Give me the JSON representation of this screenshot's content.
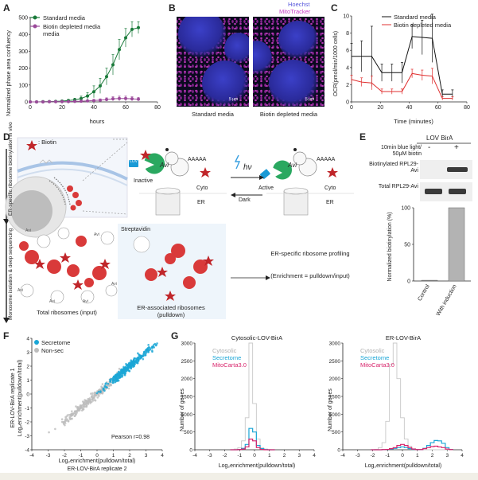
{
  "panels": {
    "A": "A",
    "B": "B",
    "C": "C",
    "D": "D",
    "E": "E",
    "F": "F",
    "G": "G"
  },
  "panelA": {
    "ylabel": "Normalized phase area confluency",
    "xlabel": "hours",
    "legend": [
      "Standard media",
      "Biotin depleted media"
    ],
    "yticks": [
      "0",
      "100",
      "200",
      "300",
      "400",
      "500"
    ],
    "xticks": [
      "0",
      "20",
      "40",
      "60",
      "80"
    ]
  },
  "panelB": {
    "legend_hoechst": "Hoechst",
    "legend_mito": "MitoTracker",
    "label_left": "Standard media",
    "label_right": "Biotin depleted media",
    "scale_left": "5 μm",
    "scale_right": "5 μm"
  },
  "panelC": {
    "ylabel": "OCR(pmol/min/1000 cells)",
    "xlabel": "Time (minutes)",
    "legend": [
      "Standard media",
      "Biotin depleted media"
    ],
    "yticks": [
      "0",
      "2",
      "4",
      "6",
      "8",
      "10"
    ],
    "xticks": [
      "0",
      "20",
      "40",
      "60",
      "80"
    ]
  },
  "panelD": {
    "biotin_legend": ": Biotin",
    "side_label_top": "ER-specific ribosome biotinylation in vivo",
    "side_label_bottom": "Monosome isolation & deep sequencing",
    "lov": "LOV",
    "avi": "Avi",
    "aaaaa_left": "AAAAA",
    "aaaaa_right": "AAAAA",
    "inactive": "Inactive",
    "active": "Active",
    "cyto_left": "Cyto",
    "cyto_right": "Cyto",
    "er_left": "ER",
    "er_right": "ER",
    "hv": "hν",
    "dark": "Dark",
    "streptavidin": "Streptavidin",
    "total_ribosomes": "Total ribosomes (input)",
    "er_ribosomes": "ER-associated ribosomes (pulldown)",
    "profiling": "ER-specific ribosome profiling",
    "enrichment": "(Enrichment = pulldown/input)",
    "avi_tags": [
      "Avi",
      "Avi",
      "Avi",
      "Avi",
      "Avi",
      "Avi"
    ]
  },
  "panelE": {
    "title": "LOV BirA",
    "row_condition": "10min blue light/ 50μM biotin",
    "minus": "-",
    "plus": "+",
    "row1": "Biotinylated RPL29-Avi",
    "row2": "Total RPL29-Avi",
    "ylabel": "Normalized biotinylation (%)",
    "yticks": [
      "0",
      "50",
      "100"
    ],
    "xlabels": [
      "Control",
      "With induction"
    ]
  },
  "panelF": {
    "legend": [
      "Secretome",
      "Non-sec"
    ],
    "ylabel1": "ER-LOV-BirA replicate 1",
    "ylabel2": "Log₂enrichment(pulldown/total)",
    "xlabel1": "Log₂enrichment(pulldown/total)",
    "xlabel2": "ER-LOV-BirA replicate 2",
    "pearson": "Pearson r=0.98",
    "xticks": [
      "-4",
      "-3",
      "-2",
      "-1",
      "0",
      "1",
      "2",
      "3",
      "4"
    ],
    "yticks": [
      "-4",
      "-3",
      "-2",
      "-1",
      "0",
      "1",
      "2",
      "3",
      "4"
    ]
  },
  "panelG": {
    "left_title": "Cytosolic-LOV-BirA",
    "right_title": "ER-LOV-BirA",
    "ylabel": "Number of genes",
    "xlabel": "Log₂enrichment(pulldown/total)",
    "legend": [
      "Cytosolic",
      "Secretome",
      "MitoCarta3.0"
    ],
    "yticks": [
      "0",
      "500",
      "1000",
      "1500",
      "2000",
      "2500",
      "3000"
    ],
    "xticks": [
      "-4",
      "-3",
      "-2",
      "-1",
      "0",
      "1",
      "2",
      "3",
      "4"
    ]
  },
  "colors": {
    "standard": "#1a7a3a",
    "biotin_depleted": "#9b4a9a",
    "ocr_standard": "#111111",
    "ocr_depleted": "#e03030",
    "secretome": "#1aa6d6",
    "nonsec": "#bdbdbd",
    "cytosolic": "#c8c8c8",
    "mitocarta": "#d8246b",
    "ribosome": "#d93a3a",
    "lov": "#1a9ad6",
    "bira": "#2aa860",
    "membrane": "#a8c4e6",
    "bar": "#b3b3b3"
  },
  "chart_data": [
    {
      "id": "A",
      "type": "line",
      "title": "",
      "xlabel": "hours",
      "ylabel": "Normalized phase area confluency",
      "xlim": [
        0,
        80
      ],
      "ylim": [
        0,
        500
      ],
      "series": [
        {
          "name": "Standard media",
          "x": [
            0,
            4,
            8,
            12,
            16,
            20,
            24,
            28,
            32,
            36,
            40,
            44,
            48,
            52,
            56,
            60,
            64,
            68
          ],
          "y": [
            0,
            0,
            1,
            2,
            3,
            5,
            8,
            12,
            20,
            35,
            60,
            95,
            150,
            220,
            310,
            380,
            430,
            440
          ],
          "err": [
            0,
            0,
            1,
            2,
            3,
            4,
            6,
            10,
            14,
            20,
            35,
            45,
            50,
            60,
            60,
            55,
            45,
            35
          ]
        },
        {
          "name": "Biotin depleted media",
          "x": [
            0,
            4,
            8,
            12,
            16,
            20,
            24,
            28,
            32,
            36,
            40,
            44,
            48,
            52,
            56,
            60,
            64,
            68
          ],
          "y": [
            0,
            0,
            0,
            1,
            1,
            2,
            2,
            3,
            4,
            6,
            8,
            10,
            14,
            18,
            20,
            20,
            18,
            16
          ],
          "err": [
            0,
            0,
            0,
            1,
            1,
            1,
            2,
            2,
            3,
            4,
            6,
            8,
            10,
            12,
            14,
            14,
            12,
            10
          ]
        }
      ]
    },
    {
      "id": "C",
      "type": "line",
      "title": "",
      "xlabel": "Time (minutes)",
      "ylabel": "OCR(pmol/min/1000 cells)",
      "xlim": [
        0,
        80
      ],
      "ylim": [
        0,
        10
      ],
      "series": [
        {
          "name": "Standard media",
          "x": [
            0,
            7,
            14,
            21,
            28,
            35,
            42,
            49,
            56,
            63,
            70
          ],
          "y": [
            5.3,
            5.3,
            5.3,
            3.4,
            3.4,
            3.4,
            7.6,
            7.5,
            7.4,
            0.9,
            0.9
          ],
          "err": [
            1.5,
            1.8,
            3.5,
            1.0,
            1.0,
            1.2,
            1.4,
            2.0,
            2.8,
            0.5,
            0.5
          ]
        },
        {
          "name": "Biotin depleted media",
          "x": [
            0,
            7,
            14,
            21,
            28,
            35,
            42,
            49,
            56,
            63,
            70
          ],
          "y": [
            2.6,
            2.3,
            2.2,
            1.2,
            1.2,
            1.2,
            3.3,
            3.1,
            3.0,
            0.4,
            0.4
          ],
          "err": [
            0.5,
            0.5,
            0.8,
            0.3,
            0.3,
            0.3,
            0.5,
            0.6,
            0.9,
            0.2,
            0.2
          ]
        }
      ]
    },
    {
      "id": "E",
      "type": "bar",
      "title": "",
      "xlabel": "",
      "ylabel": "Normalized biotinylation (%)",
      "categories": [
        "Control",
        "With induction"
      ],
      "values": [
        1,
        100
      ],
      "ylim": [
        0,
        100
      ]
    },
    {
      "id": "G-left",
      "type": "bar",
      "title": "Cytosolic-LOV-BirA",
      "xlabel": "Log₂enrichment(pulldown/total)",
      "ylabel": "Number of genes",
      "xlim": [
        -4,
        4
      ],
      "ylim": [
        0,
        3000
      ],
      "x": [
        -1.5,
        -1.25,
        -1.0,
        -0.75,
        -0.5,
        -0.25,
        0.0,
        0.25,
        0.5,
        0.75,
        1.0,
        1.25
      ],
      "series": [
        {
          "name": "Cytosolic",
          "values": [
            0,
            20,
            60,
            250,
            900,
            3000,
            1300,
            300,
            60,
            20,
            5,
            0
          ]
        },
        {
          "name": "Secretome",
          "values": [
            0,
            0,
            10,
            40,
            150,
            600,
            500,
            120,
            30,
            5,
            0,
            0
          ]
        },
        {
          "name": "MitoCarta3.0",
          "values": [
            0,
            0,
            5,
            20,
            80,
            300,
            250,
            60,
            10,
            0,
            0,
            0
          ]
        }
      ]
    },
    {
      "id": "G-right",
      "type": "bar",
      "title": "ER-LOV-BirA",
      "xlabel": "Log₂enrichment(pulldown/total)",
      "ylabel": "Number of genes",
      "xlim": [
        -4,
        4
      ],
      "ylim": [
        0,
        3000
      ],
      "x": [
        -2.0,
        -1.75,
        -1.5,
        -1.25,
        -1.0,
        -0.75,
        -0.5,
        -0.25,
        0.0,
        0.25,
        0.5,
        0.75,
        1.0,
        1.25,
        1.5,
        1.75,
        2.0,
        2.25,
        2.5,
        2.75,
        3.0,
        3.25
      ],
      "series": [
        {
          "name": "Cytosolic",
          "values": [
            0,
            10,
            60,
            200,
            800,
            2400,
            3000,
            2000,
            900,
            300,
            100,
            30,
            10,
            0,
            0,
            0,
            0,
            0,
            0,
            0,
            0,
            0
          ]
        },
        {
          "name": "Secretome",
          "values": [
            0,
            0,
            0,
            5,
            10,
            20,
            40,
            60,
            80,
            60,
            30,
            10,
            5,
            5,
            40,
            120,
            200,
            260,
            250,
            180,
            60,
            10
          ]
        },
        {
          "name": "MitoCarta3.0",
          "values": [
            0,
            0,
            0,
            5,
            10,
            30,
            60,
            120,
            150,
            120,
            60,
            20,
            5,
            5,
            30,
            60,
            90,
            100,
            80,
            60,
            20,
            5
          ]
        }
      ]
    },
    {
      "id": "F",
      "type": "scatter",
      "title": "",
      "xlabel": "Log₂enrichment(pulldown/total) ER-LOV-BirA replicate 2",
      "ylabel": "ER-LOV-BirA replicate 1 Log₂enrichment(pulldown/total)",
      "xlim": [
        -4,
        4
      ],
      "ylim": [
        -4,
        4
      ],
      "series": [
        {
          "name": "Secretome",
          "center": [
            2.0,
            2.0
          ],
          "spread": 1.3
        },
        {
          "name": "Non-sec",
          "center": [
            -0.3,
            -0.3
          ],
          "spread": 1.6
        }
      ],
      "pearson_r": 0.98
    }
  ]
}
